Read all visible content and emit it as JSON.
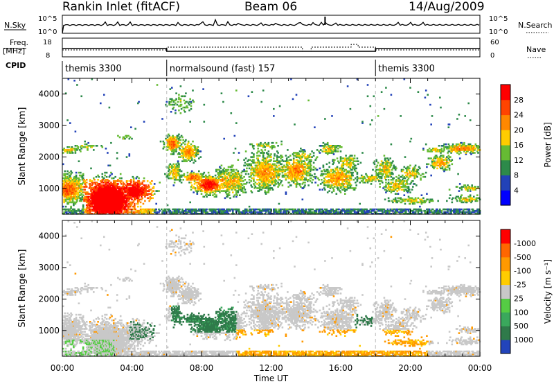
{
  "header": {
    "title": "Rankin Inlet (fitACF)",
    "beam": "Beam 06",
    "date": "14/Aug/2009"
  },
  "top_panels": {
    "nsky_label": "N.Sky",
    "nsearch_label": "N.Search",
    "noise_ticks": [
      "10^5",
      "10^0"
    ],
    "freq_label": "Freq.",
    "freq_unit": "[MHz]",
    "freq_ticks": [
      "18",
      "8"
    ],
    "nave_label": "Nave",
    "nave_ticks": [
      "60",
      "0"
    ],
    "cpid_label": "CPID",
    "cpid_segments": [
      {
        "label": "themis 3300",
        "start": 0.0,
        "end": 6.0
      },
      {
        "label": "normalsound (fast) 157",
        "start": 6.0,
        "end": 18.0
      },
      {
        "label": "themis 3300",
        "start": 18.0,
        "end": 24.0
      }
    ]
  },
  "chart_data": [
    {
      "type": "heatmap",
      "name": "power",
      "ylabel": "Slant Range [km]",
      "ylim": [
        180,
        4500
      ],
      "yticks": [
        "1000",
        "2000",
        "3000",
        "4000"
      ],
      "xlim": [
        0,
        24
      ],
      "colorbar": {
        "label": "Power [dB]",
        "ticks": [
          "4",
          "8",
          "12",
          "16",
          "20",
          "24",
          "28"
        ],
        "colors": [
          "#0000ff",
          "#2242b8",
          "#2d8a4a",
          "#66bb33",
          "#ffcc00",
          "#ff8800",
          "#ff4400",
          "#ff0000"
        ]
      }
    },
    {
      "type": "heatmap",
      "name": "velocity",
      "ylabel": "Slant Range [km]",
      "ylim": [
        180,
        4500
      ],
      "yticks": [
        "1000",
        "2000",
        "3000",
        "4000"
      ],
      "xlim": [
        0,
        24
      ],
      "colorbar": {
        "label": "Velocity [m s⁻¹]",
        "ticks": [
          "1000",
          "500",
          "100",
          "25",
          "-25",
          "-100",
          "-500",
          "-1000"
        ],
        "colors": [
          "#2244bb",
          "#2f7a4a",
          "#3aa85c",
          "#55cc44",
          "#c8c8c8",
          "#ffcc00",
          "#ff9900",
          "#ff6600",
          "#ff0000"
        ]
      }
    }
  ],
  "xaxis": {
    "label": "Time UT",
    "ticks": [
      "00:00",
      "04:00",
      "08:00",
      "12:00",
      "16:00",
      "20:00",
      "00:00"
    ]
  }
}
